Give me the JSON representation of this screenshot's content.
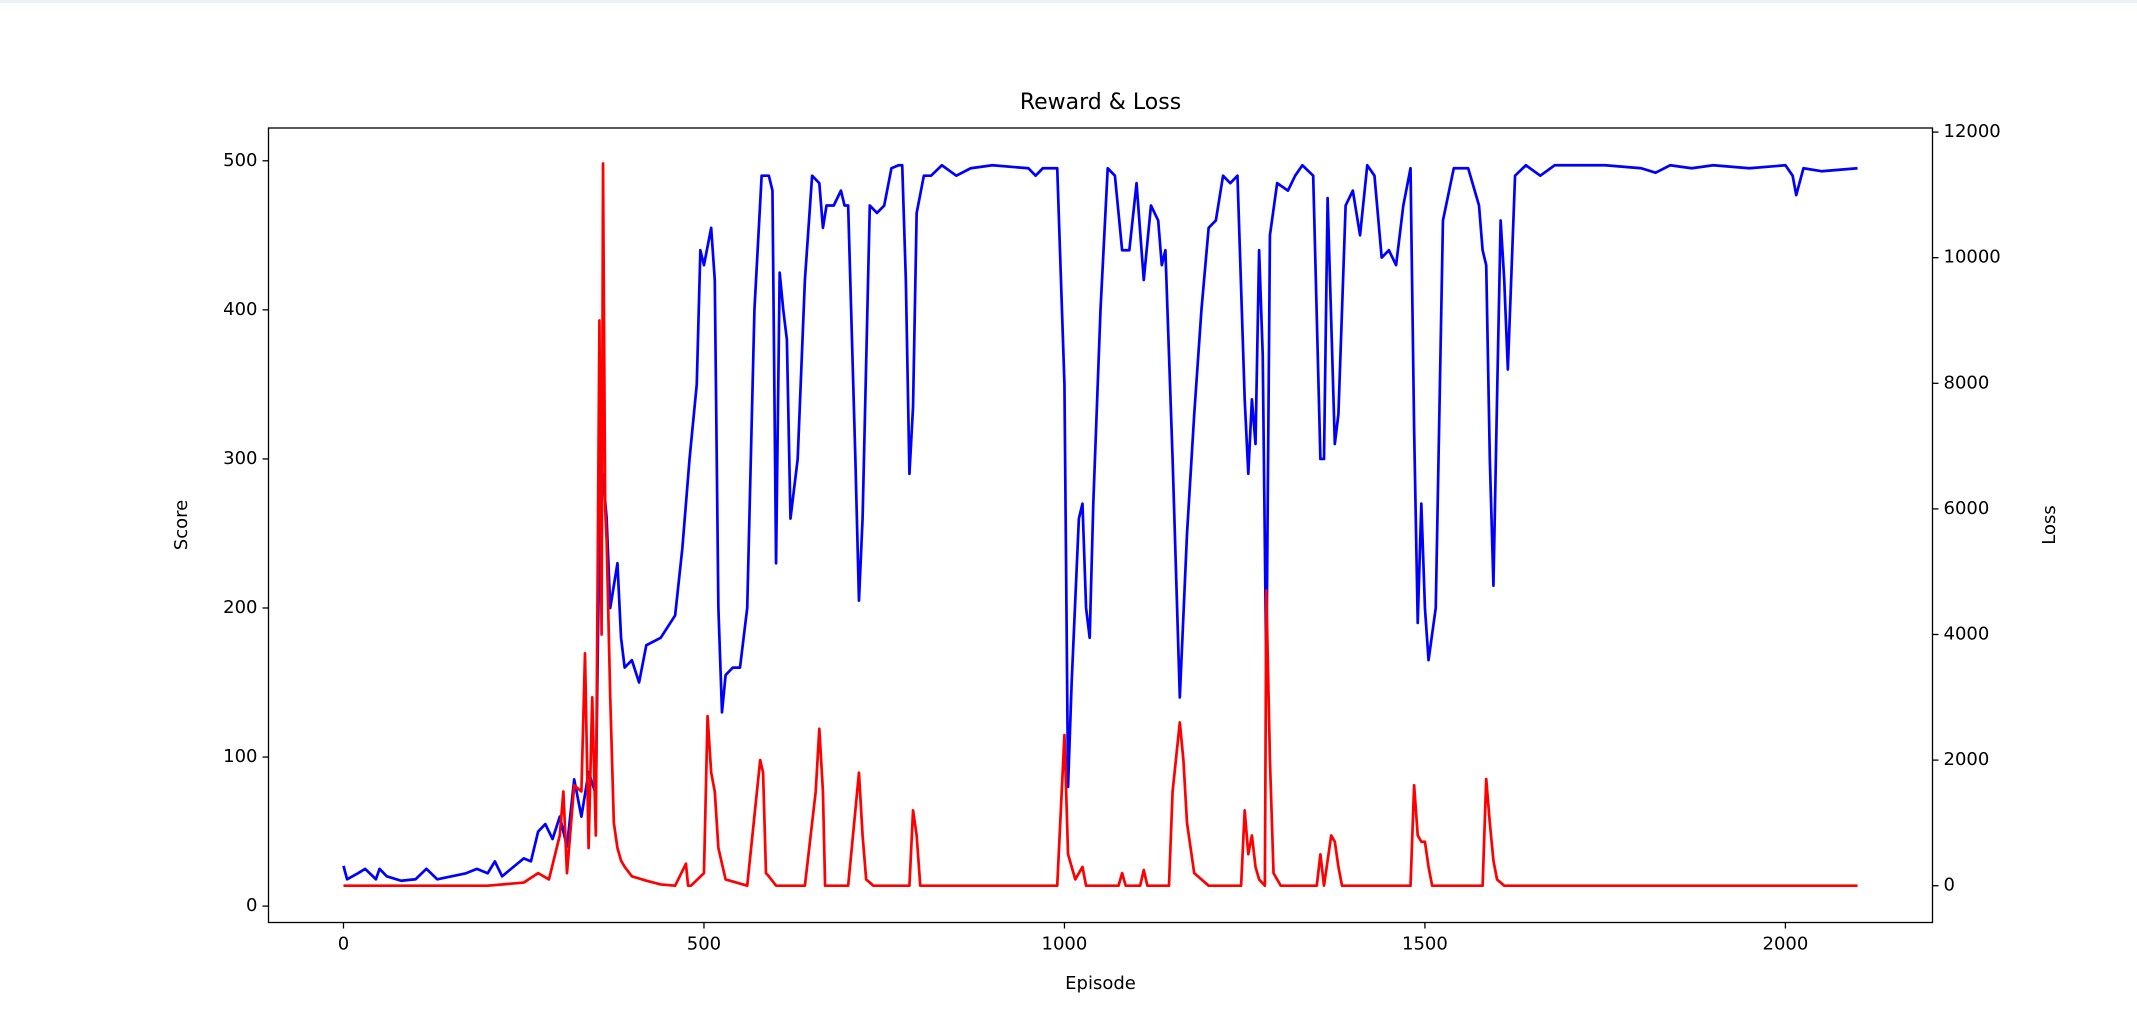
{
  "chart_data": {
    "type": "line",
    "title": "Reward & Loss",
    "xlabel": "Episode",
    "ylabel": "Score",
    "y2label": "Loss",
    "xlim": [
      -104,
      2204
    ],
    "ylim": [
      -11,
      522
    ],
    "y2lim": [
      -586,
      12065
    ],
    "xticks": [
      0,
      500,
      1000,
      1500,
      2000
    ],
    "yticks": [
      0,
      100,
      200,
      300,
      400,
      500
    ],
    "y2ticks": [
      0,
      2000,
      4000,
      6000,
      8000,
      10000,
      12000
    ],
    "grid": false,
    "series": [
      {
        "color": "#0000ff",
        "axis": "y",
        "x": [
          0,
          5,
          20,
          30,
          45,
          50,
          60,
          80,
          100,
          115,
          130,
          150,
          170,
          185,
          200,
          210,
          220,
          240,
          250,
          260,
          270,
          280,
          290,
          300,
          310,
          320,
          330,
          340,
          350,
          355,
          360,
          365,
          370,
          380,
          385,
          390,
          400,
          410,
          420,
          440,
          460,
          470,
          480,
          490,
          495,
          500,
          510,
          515,
          520,
          525,
          530,
          540,
          550,
          560,
          570,
          580,
          590,
          595,
          600,
          605,
          610,
          615,
          620,
          630,
          640,
          650,
          660,
          665,
          670,
          680,
          690,
          695,
          700,
          710,
          715,
          720,
          730,
          740,
          750,
          760,
          770,
          775,
          780,
          785,
          790,
          795,
          805,
          815,
          830,
          850,
          870,
          900,
          950,
          960,
          970,
          990,
          1000,
          1005,
          1010,
          1020,
          1025,
          1030,
          1035,
          1040,
          1050,
          1060,
          1070,
          1080,
          1090,
          1100,
          1110,
          1120,
          1130,
          1135,
          1140,
          1150,
          1160,
          1170,
          1180,
          1190,
          1200,
          1210,
          1220,
          1230,
          1240,
          1250,
          1255,
          1260,
          1265,
          1270,
          1275,
          1280,
          1285,
          1295,
          1310,
          1320,
          1330,
          1345,
          1355,
          1360,
          1365,
          1375,
          1380,
          1390,
          1400,
          1410,
          1420,
          1430,
          1440,
          1450,
          1460,
          1470,
          1480,
          1485,
          1490,
          1495,
          1500,
          1505,
          1515,
          1525,
          1540,
          1560,
          1575,
          1580,
          1585,
          1590,
          1595,
          1600,
          1605,
          1610,
          1615,
          1625,
          1640,
          1660,
          1680,
          1750,
          1800,
          1820,
          1840,
          1870,
          1900,
          1950,
          2000,
          2010,
          2015,
          2025,
          2050,
          2100
        ],
        "values": [
          27,
          18,
          22,
          25,
          18,
          25,
          20,
          17,
          18,
          25,
          18,
          20,
          22,
          25,
          22,
          30,
          20,
          28,
          32,
          30,
          50,
          55,
          45,
          60,
          40,
          85,
          60,
          90,
          75,
          250,
          290,
          260,
          200,
          230,
          180,
          160,
          165,
          150,
          175,
          180,
          195,
          240,
          300,
          350,
          440,
          430,
          455,
          420,
          200,
          130,
          155,
          160,
          160,
          200,
          400,
          490,
          490,
          480,
          230,
          425,
          400,
          380,
          260,
          300,
          420,
          490,
          485,
          455,
          470,
          470,
          480,
          470,
          470,
          300,
          205,
          260,
          470,
          465,
          470,
          495,
          497,
          497,
          420,
          290,
          335,
          465,
          490,
          490,
          497,
          490,
          495,
          497,
          495,
          490,
          495,
          495,
          350,
          80,
          150,
          260,
          270,
          200,
          180,
          270,
          400,
          495,
          490,
          440,
          440,
          485,
          420,
          470,
          460,
          430,
          440,
          300,
          140,
          250,
          330,
          400,
          455,
          460,
          490,
          485,
          490,
          340,
          290,
          340,
          310,
          440,
          370,
          155,
          450,
          485,
          480,
          490,
          497,
          490,
          300,
          300,
          475,
          310,
          330,
          470,
          480,
          450,
          497,
          490,
          435,
          440,
          430,
          470,
          495,
          320,
          190,
          270,
          200,
          165,
          200,
          460,
          495,
          495,
          470,
          440,
          430,
          300,
          215,
          340,
          460,
          420,
          360,
          490,
          497,
          490,
          497,
          497,
          495,
          492,
          497,
          495,
          497,
          495,
          497,
          490,
          477,
          495,
          493,
          495
        ]
      },
      {
        "color": "#ff0000",
        "axis": "y2",
        "x": [
          0,
          200,
          250,
          270,
          285,
          300,
          305,
          310,
          320,
          330,
          335,
          340,
          345,
          350,
          355,
          358,
          360,
          363,
          365,
          370,
          375,
          380,
          385,
          390,
          400,
          420,
          440,
          460,
          475,
          478,
          482,
          500,
          505,
          510,
          515,
          520,
          530,
          560,
          578,
          582,
          586,
          590,
          600,
          640,
          655,
          660,
          665,
          668,
          700,
          710,
          715,
          720,
          725,
          735,
          785,
          790,
          795,
          800,
          805,
          990,
          1000,
          1005,
          1015,
          1025,
          1030,
          1075,
          1080,
          1085,
          1105,
          1110,
          1115,
          1145,
          1150,
          1160,
          1165,
          1170,
          1180,
          1200,
          1245,
          1250,
          1255,
          1260,
          1265,
          1270,
          1278,
          1280,
          1285,
          1290,
          1300,
          1350,
          1355,
          1360,
          1370,
          1375,
          1380,
          1385,
          1390,
          1480,
          1485,
          1490,
          1495,
          1500,
          1505,
          1510,
          1580,
          1585,
          1590,
          1595,
          1600,
          1610,
          2100
        ],
        "values": [
          0,
          0,
          50,
          200,
          100,
          800,
          1500,
          200,
          1600,
          1500,
          3700,
          600,
          3000,
          800,
          9000,
          4000,
          11500,
          6000,
          5500,
          3000,
          1000,
          600,
          400,
          300,
          150,
          80,
          20,
          0,
          350,
          0,
          0,
          200,
          2700,
          1800,
          1500,
          600,
          100,
          0,
          2000,
          1800,
          200,
          150,
          0,
          0,
          1500,
          2500,
          1500,
          0,
          0,
          1200,
          1800,
          800,
          100,
          0,
          0,
          1200,
          800,
          0,
          0,
          0,
          2400,
          500,
          100,
          300,
          0,
          0,
          200,
          0,
          0,
          250,
          0,
          0,
          1500,
          2600,
          2000,
          1000,
          200,
          0,
          0,
          1200,
          500,
          800,
          300,
          100,
          0,
          4700,
          2000,
          200,
          0,
          0,
          500,
          0,
          800,
          700,
          300,
          0,
          0,
          0,
          1600,
          800,
          700,
          700,
          300,
          0,
          0,
          1700,
          1000,
          400,
          100,
          0,
          0
        ]
      }
    ]
  }
}
